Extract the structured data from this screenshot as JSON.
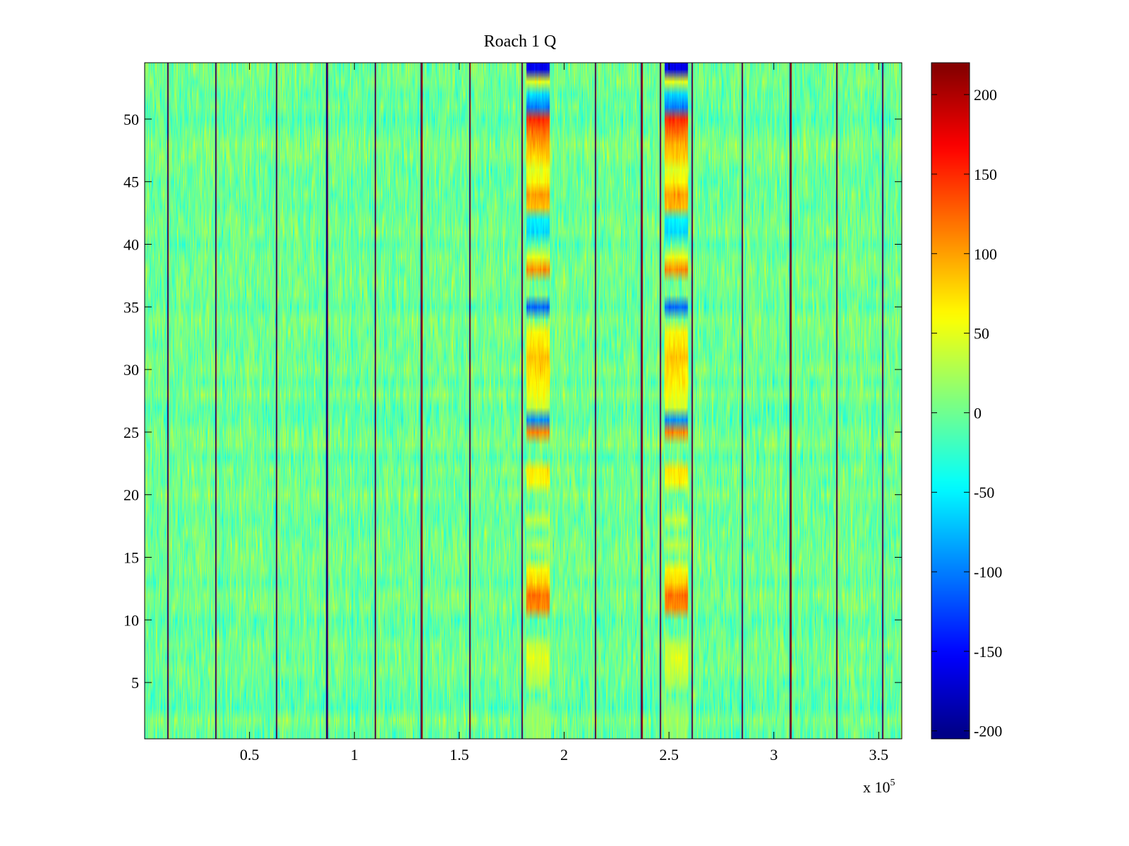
{
  "chart_data": {
    "type": "heatmap",
    "title": "Roach 1 Q",
    "xlabel": "",
    "ylabel": "",
    "x_range": [
      0,
      361000
    ],
    "y_range": [
      0.5,
      54.5
    ],
    "rows": 54,
    "x_ticks": [
      0.5,
      1,
      1.5,
      2,
      2.5,
      3,
      3.5
    ],
    "x_tick_labels": [
      "0.5",
      "1",
      "1.5",
      "2",
      "2.5",
      "3",
      "3.5"
    ],
    "x_multiplier_label": "x 10",
    "x_multiplier_exponent": "5",
    "y_ticks": [
      5,
      10,
      15,
      20,
      25,
      30,
      35,
      40,
      45,
      50
    ],
    "y_tick_labels": [
      "5",
      "10",
      "15",
      "20",
      "25",
      "30",
      "35",
      "40",
      "45",
      "50"
    ],
    "colorbar": {
      "range": [
        -205,
        220
      ],
      "ticks": [
        -200,
        -150,
        -100,
        -50,
        0,
        50,
        100,
        150,
        200
      ],
      "tick_labels": [
        "-200",
        "-150",
        "-100",
        "-50",
        "0",
        "50",
        "100",
        "150",
        "200"
      ],
      "colormap": "jet"
    },
    "background_noise": {
      "mean": 0,
      "spread": 25
    },
    "spike_columns": [
      11000,
      34000,
      63000,
      87000,
      110000,
      132000,
      155000,
      180000,
      215000,
      237000,
      246000,
      261000,
      285000,
      308000,
      330000,
      352000
    ],
    "burst_bands": [
      {
        "x_range": [
          182000,
          193000
        ],
        "row_values": {
          "1": 15,
          "2": 20,
          "3": 10,
          "5": 25,
          "6": 40,
          "7": 50,
          "8": 35,
          "11": 110,
          "12": 120,
          "13": 80,
          "14": 60,
          "16": 30,
          "18": 35,
          "21": 60,
          "22": 70,
          "25": 110,
          "26": -90,
          "27": 40,
          "28": 55,
          "29": 70,
          "30": 75,
          "31": 85,
          "32": 70,
          "33": 60,
          "35": -110,
          "38": 110,
          "39": 50,
          "41": -60,
          "42": -50,
          "43": 90,
          "44": 100,
          "45": 60,
          "46": 50,
          "47": 80,
          "48": 95,
          "49": 120,
          "50": 150,
          "51": -100,
          "52": -60,
          "53": 50,
          "54": -160
        }
      },
      {
        "x_range": [
          248000,
          259000
        ],
        "row_values": {
          "1": 15,
          "2": 20,
          "3": 10,
          "5": 25,
          "6": 40,
          "7": 50,
          "8": 35,
          "11": 110,
          "12": 120,
          "13": 80,
          "14": 60,
          "16": 30,
          "18": 35,
          "21": 60,
          "22": 70,
          "25": 110,
          "26": -90,
          "27": 40,
          "28": 55,
          "29": 70,
          "30": 75,
          "31": 85,
          "32": 70,
          "33": 60,
          "35": -110,
          "38": 110,
          "39": 50,
          "41": -60,
          "42": -50,
          "43": 90,
          "44": 100,
          "45": 60,
          "46": 50,
          "47": 80,
          "48": 95,
          "49": 120,
          "50": 150,
          "51": -100,
          "52": -60,
          "53": 50,
          "54": -160
        }
      }
    ]
  }
}
